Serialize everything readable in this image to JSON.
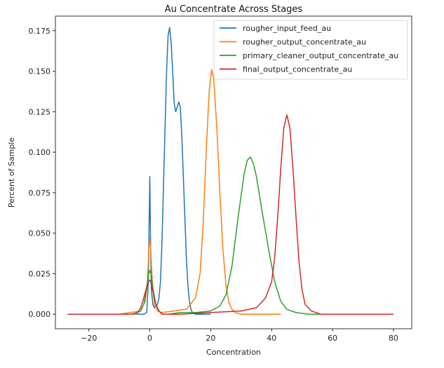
{
  "chart_data": {
    "type": "line",
    "title": "Au Concentrate Across Stages",
    "xlabel": "Concentration",
    "ylabel": "Percent of Sample",
    "xlim": [
      -31,
      86
    ],
    "ylim": [
      -0.009,
      0.184
    ],
    "xticks": [
      -20,
      0,
      20,
      40,
      60,
      80
    ],
    "yticks": [
      0.0,
      0.025,
      0.05,
      0.075,
      0.1,
      0.125,
      0.15,
      0.175
    ],
    "xtick_labels": [
      "−20",
      "0",
      "20",
      "40",
      "60",
      "80"
    ],
    "ytick_labels": [
      "0.000",
      "0.025",
      "0.050",
      "0.075",
      "0.100",
      "0.125",
      "0.150",
      "0.175"
    ],
    "grid": false,
    "legend_position": "top-right",
    "series": [
      {
        "name": "rougher_input_feed_au",
        "color": "#1f77b4",
        "x": [
          -4.5,
          -2,
          -1,
          -0.5,
          -0.2,
          0,
          0.2,
          0.5,
          1,
          1.5,
          2,
          2.5,
          3,
          3.5,
          4,
          4.5,
          5,
          5.5,
          6,
          6.5,
          7,
          7.5,
          8,
          8.5,
          9,
          9.5,
          10,
          10.5,
          11,
          11.5,
          12,
          12.5,
          13,
          13.5,
          14,
          15,
          17,
          20
        ],
        "y": [
          0.0,
          0.0,
          0.001,
          0.02,
          0.06,
          0.085,
          0.05,
          0.015,
          0.006,
          0.004,
          0.005,
          0.006,
          0.01,
          0.02,
          0.045,
          0.08,
          0.115,
          0.15,
          0.172,
          0.177,
          0.168,
          0.15,
          0.13,
          0.125,
          0.128,
          0.131,
          0.128,
          0.11,
          0.085,
          0.06,
          0.035,
          0.018,
          0.008,
          0.003,
          0.001,
          0.0,
          0.0,
          0.0
        ]
      },
      {
        "name": "rougher_output_concentrate_au",
        "color": "#ff7f0e",
        "x": [
          -26,
          -10,
          -3,
          -1.5,
          -0.8,
          -0.3,
          0,
          0.3,
          0.8,
          1.5,
          2.5,
          4,
          8,
          12,
          15,
          16.5,
          17.5,
          18.5,
          19.5,
          20.3,
          21,
          22,
          23,
          24,
          25,
          26,
          27,
          28,
          30,
          35,
          43
        ],
        "y": [
          0.0,
          0.0,
          0.002,
          0.008,
          0.02,
          0.04,
          0.047,
          0.04,
          0.02,
          0.006,
          0.002,
          0.001,
          0.002,
          0.003,
          0.01,
          0.025,
          0.055,
          0.1,
          0.138,
          0.151,
          0.145,
          0.115,
          0.075,
          0.04,
          0.018,
          0.007,
          0.003,
          0.001,
          0.0,
          0.0,
          0.0
        ]
      },
      {
        "name": "primary_cleaner_output_concentrate_au",
        "color": "#2ca02c",
        "x": [
          -26,
          -10,
          -5,
          -3,
          -2,
          -1,
          -0.5,
          0,
          0.5,
          1,
          2,
          3,
          4,
          6,
          10,
          15,
          20,
          23,
          25,
          27,
          29,
          31,
          32,
          33,
          34,
          35,
          37,
          39,
          41,
          43,
          45,
          48,
          52,
          60
        ],
        "y": [
          0.0,
          0.0,
          0.0,
          0.002,
          0.006,
          0.016,
          0.024,
          0.027,
          0.024,
          0.016,
          0.006,
          0.002,
          0.0,
          0.0,
          0.001,
          0.001,
          0.002,
          0.005,
          0.012,
          0.03,
          0.06,
          0.087,
          0.095,
          0.097,
          0.093,
          0.085,
          0.062,
          0.04,
          0.02,
          0.008,
          0.003,
          0.001,
          0.0,
          0.0
        ]
      },
      {
        "name": "final_output_concentrate_au",
        "color": "#d62728",
        "x": [
          -27,
          -10,
          -6,
          -4,
          -3,
          -2,
          -1,
          -0.5,
          0,
          0.5,
          1,
          2,
          3,
          4,
          6,
          10,
          20,
          30,
          35,
          38,
          40,
          41,
          42,
          43,
          44,
          45,
          46,
          47,
          48,
          49,
          50,
          51,
          53,
          56,
          60,
          70,
          80
        ],
        "y": [
          0.0,
          0.0,
          0.0,
          0.001,
          0.004,
          0.01,
          0.017,
          0.02,
          0.021,
          0.019,
          0.014,
          0.006,
          0.002,
          0.0,
          0.0,
          0.0,
          0.001,
          0.002,
          0.004,
          0.01,
          0.02,
          0.035,
          0.06,
          0.09,
          0.115,
          0.123,
          0.115,
          0.09,
          0.06,
          0.032,
          0.015,
          0.006,
          0.002,
          0.0,
          0.0,
          0.0,
          0.0
        ]
      }
    ]
  }
}
